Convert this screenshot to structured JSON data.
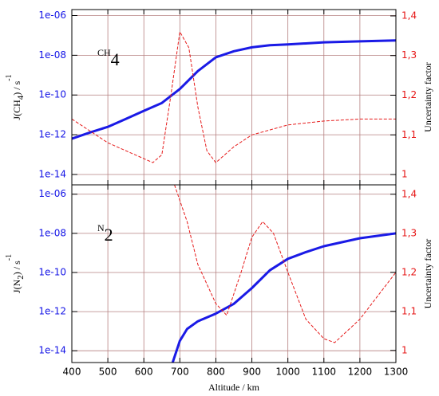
{
  "chart_data": [
    {
      "type": "line",
      "annotation": {
        "text": "CH",
        "subscript": "4"
      },
      "ylabel_parts": [
        {
          "text": "J(CH"
        },
        {
          "text": "4",
          "shift": "sub"
        },
        {
          "text": ") / s"
        },
        {
          "text": "-1",
          "shift": "super"
        }
      ],
      "y2label": "Uncertainty factor",
      "xlim": [
        400,
        1300
      ],
      "xticks": [
        400,
        500,
        600,
        700,
        800,
        900,
        1000,
        1100,
        1200,
        1300
      ],
      "xtick_labels": false,
      "ylim": [
        3e-15,
        2e-06
      ],
      "log_y": true,
      "yticks": [
        {
          "value": 1e-06,
          "label": "1e-06"
        },
        {
          "value": 1e-08,
          "label": "1e-08"
        },
        {
          "value": 1e-10,
          "label": "1e-10"
        },
        {
          "value": 1e-12,
          "label": "1e-12"
        },
        {
          "value": 1e-14,
          "label": "1e-14"
        }
      ],
      "y2lim": [
        0.974,
        1.416
      ],
      "y2ticks": [
        {
          "value": 1.4,
          "label": "1,4"
        },
        {
          "value": 1.3,
          "label": "1,3"
        },
        {
          "value": 1.2,
          "label": "1,2"
        },
        {
          "value": 1.1,
          "label": "1,1"
        },
        1
      ],
      "grid": true,
      "ytick_color": "#1414e6",
      "y2tick_color": "#e61414",
      "series": [
        {
          "color": "#1a1ae6",
          "axis": "y",
          "dash": false,
          "x": [
            400,
            450,
            500,
            550,
            600,
            650,
            700,
            750,
            800,
            850,
            900,
            950,
            1000,
            1100,
            1200,
            1300
          ],
          "values": [
            6.3e-13,
            1.3e-12,
            2.5e-12,
            6.3e-12,
            1.6e-11,
            4e-11,
            2e-10,
            1.6e-09,
            7.9e-09,
            1.6e-08,
            2.5e-08,
            3.2e-08,
            3.5e-08,
            4.5e-08,
            5e-08,
            5.6e-08
          ]
        },
        {
          "color": "#e61a1a",
          "axis": "y2",
          "dash": true,
          "x": [
            400,
            450,
            500,
            550,
            600,
            625,
            650,
            675,
            700,
            725,
            750,
            775,
            800,
            850,
            900,
            1000,
            1100,
            1200,
            1300
          ],
          "values": [
            1.14,
            1.11,
            1.08,
            1.06,
            1.04,
            1.03,
            1.05,
            1.2,
            1.36,
            1.32,
            1.17,
            1.06,
            1.03,
            1.07,
            1.1,
            1.125,
            1.135,
            1.14,
            1.14
          ]
        }
      ]
    },
    {
      "type": "line",
      "annotation": {
        "text": "N",
        "subscript": "2"
      },
      "ylabel_parts": [
        {
          "text": "J(N"
        },
        {
          "text": "2",
          "shift": "sub"
        },
        {
          "text": ") / s"
        },
        {
          "text": "-1",
          "shift": "super"
        }
      ],
      "y2label": "Uncertainty factor",
      "xlabel": "Altitude / km",
      "xlim": [
        400,
        1300
      ],
      "xticks": [
        400,
        500,
        600,
        700,
        800,
        900,
        1000,
        1100,
        1200,
        1300
      ],
      "xtick_labels": true,
      "ylim": [
        2.5e-15,
        3e-06
      ],
      "log_y": true,
      "yticks": [
        {
          "value": 1e-06,
          "label": "1e-06"
        },
        {
          "value": 1e-08,
          "label": "1e-08"
        },
        {
          "value": 1e-10,
          "label": "1e-10"
        },
        {
          "value": 1e-12,
          "label": "1e-12"
        },
        {
          "value": 1e-14,
          "label": "1e-14"
        }
      ],
      "y2lim": [
        0.969,
        1.424
      ],
      "y2ticks": [
        {
          "value": 1.4,
          "label": "1,4"
        },
        {
          "value": 1.3,
          "label": "1,3"
        },
        {
          "value": 1.2,
          "label": "1,2"
        },
        {
          "value": 1.1,
          "label": "1,1"
        },
        1
      ],
      "grid": true,
      "ytick_color": "#1414e6",
      "y2tick_color": "#e61414",
      "series": [
        {
          "color": "#1a1ae6",
          "axis": "y",
          "dash": false,
          "x": [
            680,
            700,
            720,
            750,
            800,
            850,
            900,
            950,
            1000,
            1050,
            1100,
            1200,
            1300
          ],
          "values": [
            2.5e-15,
            3.2e-14,
            1.3e-13,
            3.2e-13,
            7.9e-13,
            2.5e-12,
            1.6e-11,
            1.3e-10,
            5e-10,
            1.1e-09,
            2.2e-09,
            5.6e-09,
            1e-08
          ]
        },
        {
          "color": "#e61a1a",
          "axis": "y2",
          "dash": true,
          "x": [
            685,
            720,
            750,
            800,
            830,
            870,
            900,
            930,
            960,
            1000,
            1050,
            1100,
            1130,
            1200,
            1250,
            1300
          ],
          "values": [
            1.424,
            1.33,
            1.22,
            1.12,
            1.09,
            1.2,
            1.29,
            1.33,
            1.3,
            1.2,
            1.08,
            1.03,
            1.02,
            1.08,
            1.14,
            1.2
          ]
        }
      ]
    }
  ]
}
